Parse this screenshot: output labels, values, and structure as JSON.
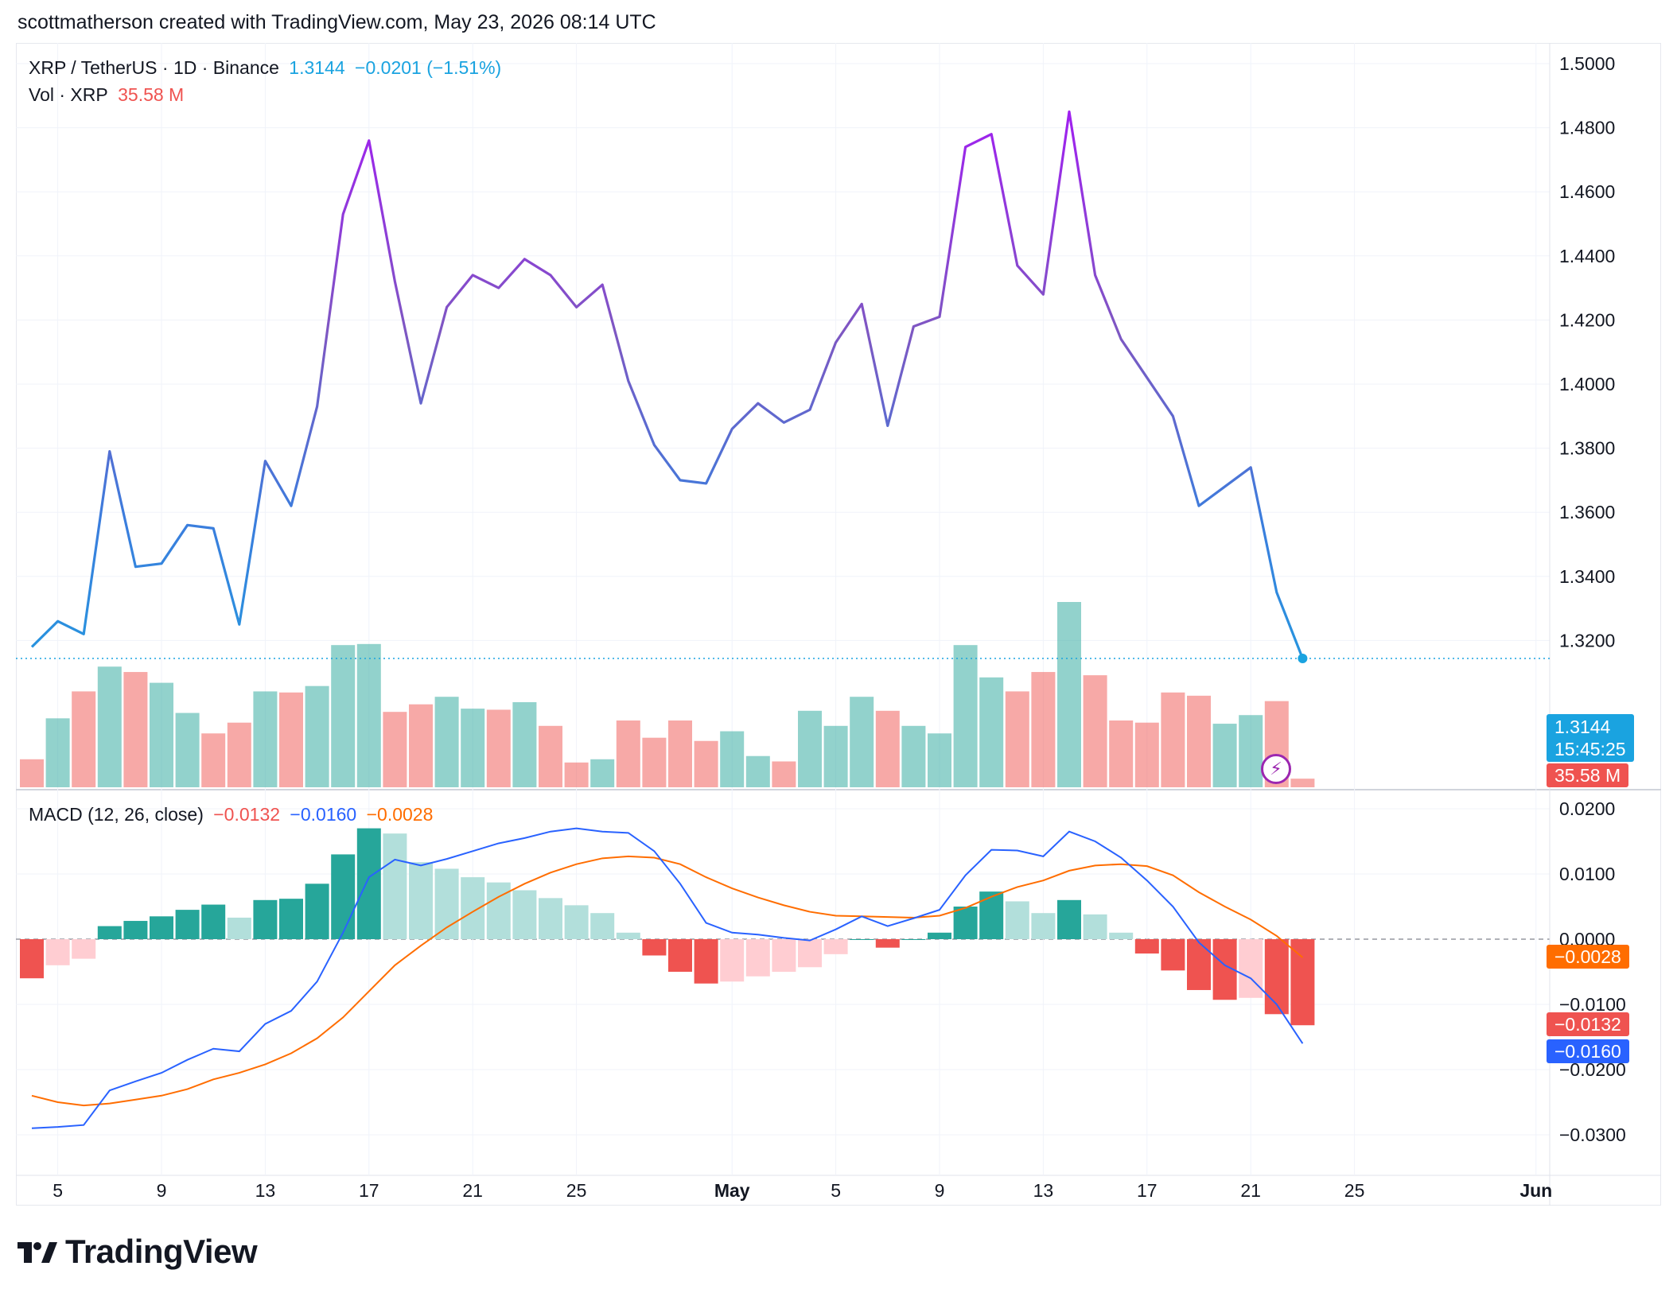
{
  "header": {
    "text": "scottmatherson created with TradingView.com, May 23, 2026 08:14 UTC"
  },
  "symbol_legend": {
    "name": "XRP / TetherUS · 1D · Binance",
    "price": "1.3144",
    "change": "−0.0201 (−1.51%)",
    "vol_label": "Vol · XRP",
    "vol_value": "35.58 M"
  },
  "macd_legend": {
    "label": "MACD (12, 26, close)",
    "hist": "−0.0132",
    "macd": "−0.0160",
    "signal": "−0.0028"
  },
  "price_tags": {
    "last_price": "1.3144",
    "countdown": "15:45:25",
    "volume": "35.58 M",
    "signal": "−0.0028",
    "hist": "−0.0132",
    "macd": "−0.0160"
  },
  "logo": {
    "text": "TradingView"
  },
  "colors": {
    "up": "#26a69a",
    "down": "#ef5350",
    "up_light": "#b2dfdb",
    "down_light": "#ffcdd2",
    "macd_line": "#2962ff",
    "signal_line": "#ff6d00",
    "price_tag": "#1aa3e0",
    "line_start": "#2196f3",
    "line_mid": "#7e57c2",
    "line_peak": "#a020f0"
  },
  "chart_data": [
    {
      "type": "line",
      "title": "XRP / TetherUS · 1D · Binance",
      "x_ticks": [
        "5",
        "9",
        "13",
        "17",
        "21",
        "25",
        "May",
        "5",
        "9",
        "13",
        "17",
        "21",
        "25",
        "Jun"
      ],
      "y_ticks": [
        "1.5000",
        "1.4800",
        "1.4600",
        "1.4400",
        "1.4200",
        "1.4000",
        "1.3800",
        "1.3600",
        "1.3400",
        "1.3200"
      ],
      "ylim": [
        1.3,
        1.5
      ],
      "x": [
        "2026-04-04",
        "2026-04-05",
        "2026-04-06",
        "2026-04-07",
        "2026-04-08",
        "2026-04-09",
        "2026-04-10",
        "2026-04-11",
        "2026-04-12",
        "2026-04-13",
        "2026-04-14",
        "2026-04-15",
        "2026-04-16",
        "2026-04-17",
        "2026-04-18",
        "2026-04-19",
        "2026-04-20",
        "2026-04-21",
        "2026-04-22",
        "2026-04-23",
        "2026-04-24",
        "2026-04-25",
        "2026-04-26",
        "2026-04-27",
        "2026-04-28",
        "2026-04-29",
        "2026-04-30",
        "2026-05-01",
        "2026-05-02",
        "2026-05-03",
        "2026-05-04",
        "2026-05-05",
        "2026-05-06",
        "2026-05-07",
        "2026-05-08",
        "2026-05-09",
        "2026-05-10",
        "2026-05-11",
        "2026-05-12",
        "2026-05-13",
        "2026-05-14",
        "2026-05-15",
        "2026-05-16",
        "2026-05-17",
        "2026-05-18",
        "2026-05-19",
        "2026-05-20",
        "2026-05-21",
        "2026-05-22",
        "2026-05-23"
      ],
      "close": [
        1.318,
        1.326,
        1.322,
        1.379,
        1.343,
        1.344,
        1.356,
        1.355,
        1.325,
        1.376,
        1.362,
        1.393,
        1.453,
        1.476,
        1.432,
        1.394,
        1.424,
        1.434,
        1.43,
        1.439,
        1.434,
        1.424,
        1.431,
        1.401,
        1.381,
        1.37,
        1.369,
        1.386,
        1.394,
        1.388,
        1.392,
        1.413,
        1.425,
        1.387,
        1.418,
        1.421,
        1.474,
        1.478,
        1.437,
        1.428,
        1.485,
        1.434,
        1.414,
        1.402,
        1.39,
        1.362,
        1.368,
        1.374,
        1.335,
        1.3144
      ]
    },
    {
      "type": "bar",
      "title": "Vol · XRP",
      "x": [
        "2026-04-04",
        "2026-04-05",
        "2026-04-06",
        "2026-04-07",
        "2026-04-08",
        "2026-04-09",
        "2026-04-10",
        "2026-04-11",
        "2026-04-12",
        "2026-04-13",
        "2026-04-14",
        "2026-04-15",
        "2026-04-16",
        "2026-04-17",
        "2026-04-18",
        "2026-04-19",
        "2026-04-20",
        "2026-04-21",
        "2026-04-22",
        "2026-04-23",
        "2026-04-24",
        "2026-04-25",
        "2026-04-26",
        "2026-04-27",
        "2026-04-28",
        "2026-04-29",
        "2026-04-30",
        "2026-05-01",
        "2026-05-02",
        "2026-05-03",
        "2026-05-04",
        "2026-05-05",
        "2026-05-06",
        "2026-05-07",
        "2026-05-08",
        "2026-05-09",
        "2026-05-10",
        "2026-05-11",
        "2026-05-12",
        "2026-05-13",
        "2026-05-14",
        "2026-05-15",
        "2026-05-16",
        "2026-05-17",
        "2026-05-18",
        "2026-05-19",
        "2026-05-20",
        "2026-05-21",
        "2026-05-22",
        "2026-05-23"
      ],
      "values": [
        26,
        64,
        89,
        112,
        107,
        97,
        69,
        50,
        60,
        89,
        88,
        94,
        132,
        133,
        70,
        77,
        84,
        73,
        72,
        79,
        57,
        23,
        26,
        62,
        46,
        62,
        43,
        52,
        29,
        24,
        71,
        57,
        84,
        71,
        57,
        50,
        132,
        102,
        89,
        107,
        172,
        104,
        62,
        60,
        88,
        85,
        59,
        67,
        80,
        8
      ],
      "direction": [
        "down",
        "up",
        "down",
        "up",
        "down",
        "up",
        "up",
        "down",
        "down",
        "up",
        "down",
        "up",
        "up",
        "up",
        "down",
        "down",
        "up",
        "up",
        "down",
        "up",
        "down",
        "down",
        "up",
        "down",
        "down",
        "down",
        "down",
        "up",
        "up",
        "down",
        "up",
        "up",
        "up",
        "down",
        "up",
        "up",
        "up",
        "up",
        "down",
        "down",
        "up",
        "down",
        "down",
        "down",
        "down",
        "down",
        "up",
        "up",
        "down",
        "down"
      ],
      "unit": "relative",
      "last_value": "35.58 M"
    },
    {
      "type": "line",
      "title": "MACD (12, 26, close)",
      "y_ticks": [
        "0.0200",
        "0.0100",
        "0.0000",
        "−0.0100",
        "−0.0200",
        "−0.0300"
      ],
      "ylim": [
        -0.032,
        0.022
      ],
      "x": [
        "2026-04-04",
        "2026-04-05",
        "2026-04-06",
        "2026-04-07",
        "2026-04-08",
        "2026-04-09",
        "2026-04-10",
        "2026-04-11",
        "2026-04-12",
        "2026-04-13",
        "2026-04-14",
        "2026-04-15",
        "2026-04-16",
        "2026-04-17",
        "2026-04-18",
        "2026-04-19",
        "2026-04-20",
        "2026-04-21",
        "2026-04-22",
        "2026-04-23",
        "2026-04-24",
        "2026-04-25",
        "2026-04-26",
        "2026-04-27",
        "2026-04-28",
        "2026-04-29",
        "2026-04-30",
        "2026-05-01",
        "2026-05-02",
        "2026-05-03",
        "2026-05-04",
        "2026-05-05",
        "2026-05-06",
        "2026-05-07",
        "2026-05-08",
        "2026-05-09",
        "2026-05-10",
        "2026-05-11",
        "2026-05-12",
        "2026-05-13",
        "2026-05-14",
        "2026-05-15",
        "2026-05-16",
        "2026-05-17",
        "2026-05-18",
        "2026-05-19",
        "2026-05-20",
        "2026-05-21",
        "2026-05-22",
        "2026-05-23"
      ],
      "series": [
        {
          "name": "MACD",
          "values": [
            -0.029,
            -0.0288,
            -0.0285,
            -0.0232,
            -0.0218,
            -0.0205,
            -0.0185,
            -0.0168,
            -0.0172,
            -0.013,
            -0.011,
            -0.0065,
            0.001,
            0.0095,
            0.0122,
            0.0113,
            0.0123,
            0.0135,
            0.0147,
            0.0155,
            0.0165,
            0.017,
            0.0165,
            0.0163,
            0.0135,
            0.0085,
            0.0025,
            0.001,
            0.0007,
            0.0002,
            -0.0002,
            0.0015,
            0.0035,
            0.002,
            0.0032,
            0.0045,
            0.0098,
            0.0137,
            0.0136,
            0.0127,
            0.0165,
            0.015,
            0.0125,
            0.009,
            0.005,
            -0.0005,
            -0.004,
            -0.006,
            -0.01,
            -0.016
          ]
        },
        {
          "name": "Signal",
          "values": [
            -0.024,
            -0.025,
            -0.0255,
            -0.0252,
            -0.0246,
            -0.024,
            -0.023,
            -0.0215,
            -0.0205,
            -0.0192,
            -0.0175,
            -0.0152,
            -0.012,
            -0.008,
            -0.004,
            -0.001,
            0.0018,
            0.0042,
            0.0065,
            0.0085,
            0.0102,
            0.0115,
            0.0124,
            0.0127,
            0.0125,
            0.0115,
            0.0095,
            0.0078,
            0.0064,
            0.0052,
            0.0042,
            0.0036,
            0.0035,
            0.0034,
            0.0033,
            0.0036,
            0.0048,
            0.0065,
            0.008,
            0.009,
            0.0105,
            0.0113,
            0.0115,
            0.0112,
            0.0098,
            0.0072,
            0.005,
            0.003,
            0.0005,
            -0.0028
          ]
        },
        {
          "name": "Histogram",
          "values": [
            -0.006,
            -0.004,
            -0.003,
            0.002,
            0.0028,
            0.0035,
            0.0045,
            0.0053,
            0.0033,
            0.006,
            0.0062,
            0.0085,
            0.013,
            0.017,
            0.0162,
            0.0118,
            0.0108,
            0.0095,
            0.0087,
            0.0075,
            0.0063,
            0.0052,
            0.004,
            0.001,
            -0.0025,
            -0.005,
            -0.0068,
            -0.0065,
            -0.0057,
            -0.005,
            -0.0043,
            -0.0023,
            0.0,
            -0.0013,
            0.0,
            0.001,
            0.005,
            0.0073,
            0.0058,
            0.004,
            0.006,
            0.0038,
            0.001,
            -0.0022,
            -0.0048,
            -0.0078,
            -0.0093,
            -0.009,
            -0.0115,
            -0.0132
          ]
        }
      ]
    }
  ]
}
